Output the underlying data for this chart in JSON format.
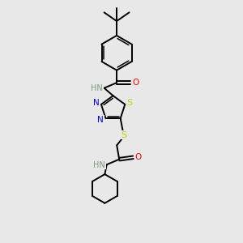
{
  "background_color": "#e8e8e8",
  "C": "#000000",
  "H": "#7a9a7a",
  "N": "#0000ff",
  "O": "#ff0000",
  "S": "#cccc00",
  "figsize": [
    3.0,
    3.0
  ],
  "dpi": 100,
  "lw": 1.4,
  "lw2": 1.1,
  "fs": 7.0
}
